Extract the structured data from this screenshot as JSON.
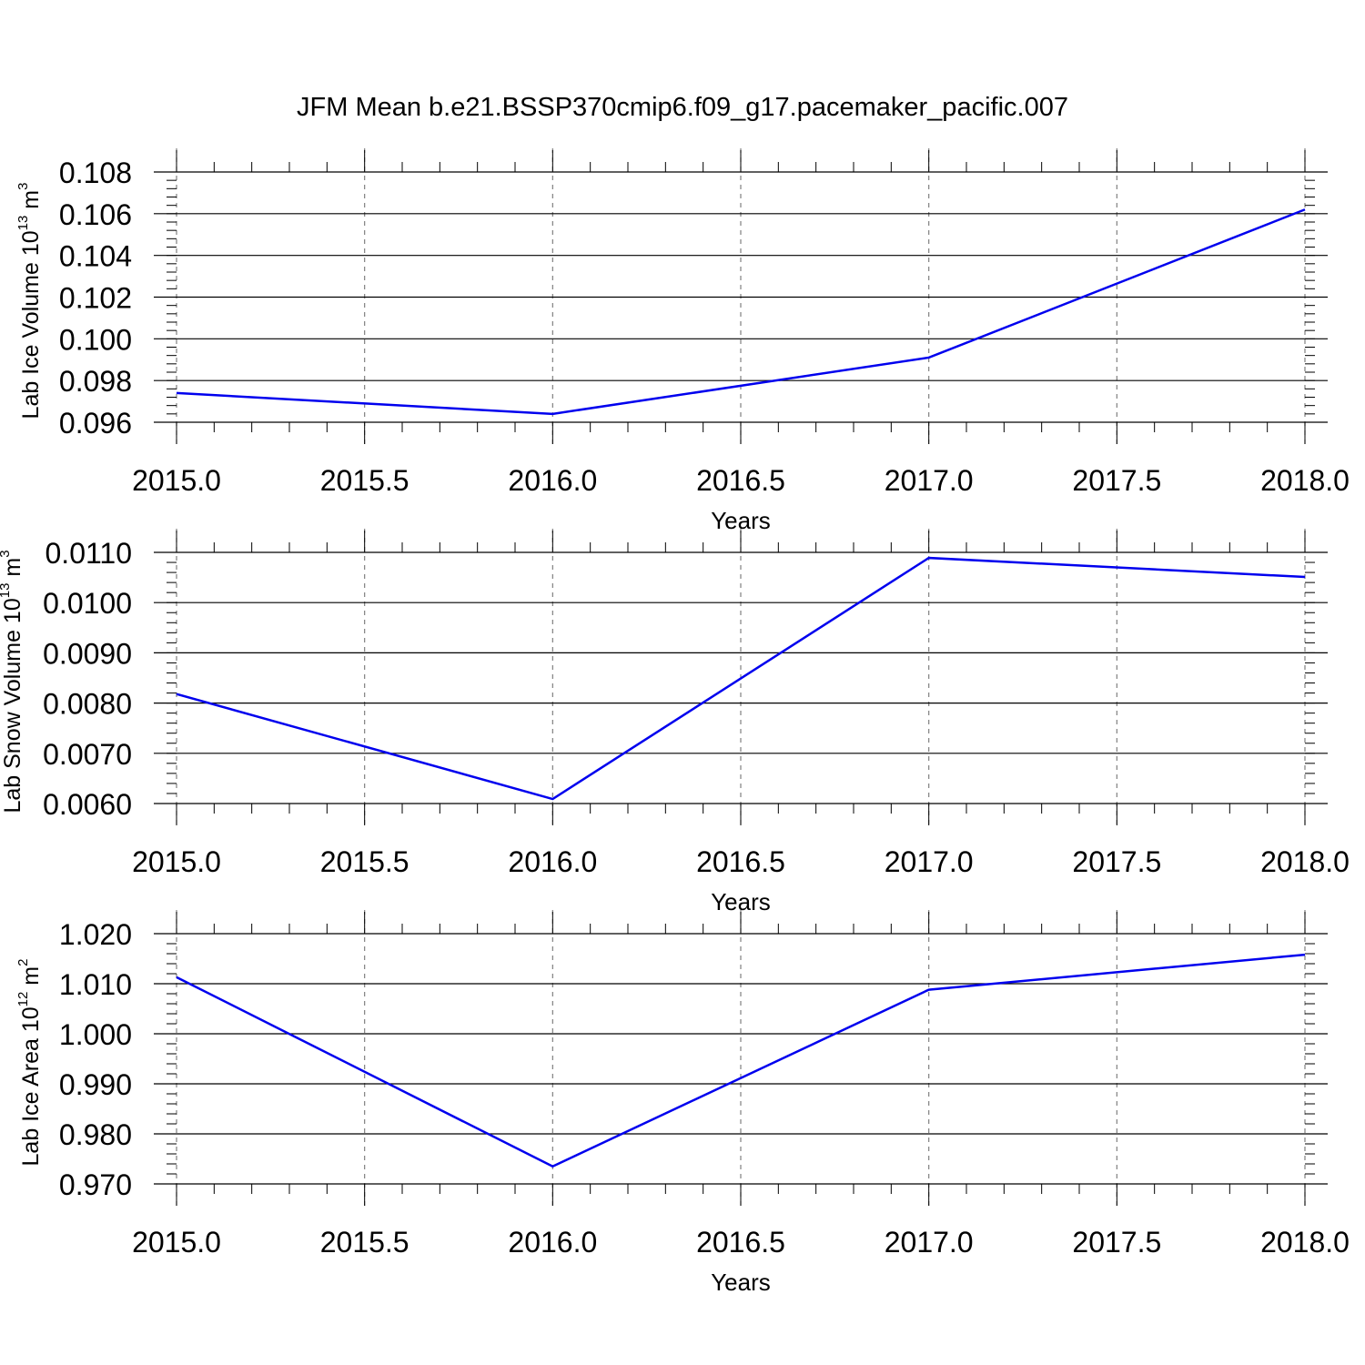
{
  "title": "JFM Mean b.e21.BSSP370cmip6.f09_g17.pacemaker_pacific.007",
  "chart_data": [
    {
      "type": "line",
      "ylabel": {
        "base": "Lab Ice Volume 10",
        "exponent": "13",
        "unit": " m",
        "unit_exponent": "3"
      },
      "xlabel": "Years",
      "xlim": [
        2015.0,
        2018.0
      ],
      "ylim": [
        0.096,
        0.108
      ],
      "x_ticks": [
        "2015.0",
        "2015.5",
        "2016.0",
        "2016.5",
        "2017.0",
        "2017.5",
        "2018.0"
      ],
      "y_ticks": [
        "0.096",
        "0.098",
        "0.100",
        "0.102",
        "0.104",
        "0.106",
        "0.108"
      ],
      "x": [
        2015,
        2016,
        2017,
        2018
      ],
      "series": [
        {
          "values": [
            0.0974,
            0.0964,
            0.0991,
            0.1062
          ]
        }
      ]
    },
    {
      "type": "line",
      "ylabel": {
        "base": "Lab Snow Volume 10",
        "exponent": "13",
        "unit": " m",
        "unit_exponent": "3"
      },
      "xlabel": "Years",
      "xlim": [
        2015.0,
        2018.0
      ],
      "ylim": [
        0.006,
        0.011
      ],
      "x_ticks": [
        "2015.0",
        "2015.5",
        "2016.0",
        "2016.5",
        "2017.0",
        "2017.5",
        "2018.0"
      ],
      "y_ticks": [
        "0.0060",
        "0.0070",
        "0.0080",
        "0.0090",
        "0.0100",
        "0.0110"
      ],
      "x": [
        2015,
        2016,
        2017,
        2018
      ],
      "series": [
        {
          "values": [
            0.00818,
            0.00609,
            0.01089,
            0.01051
          ]
        }
      ]
    },
    {
      "type": "line",
      "ylabel": {
        "base": "Lab Ice Area 10",
        "exponent": "12",
        "unit": " m",
        "unit_exponent": "2"
      },
      "xlabel": "Years",
      "xlim": [
        2015.0,
        2018.0
      ],
      "ylim": [
        0.97,
        1.02
      ],
      "x_ticks": [
        "2015.0",
        "2015.5",
        "2016.0",
        "2016.5",
        "2017.0",
        "2017.5",
        "2018.0"
      ],
      "y_ticks": [
        "0.970",
        "0.980",
        "0.990",
        "1.000",
        "1.010",
        "1.020"
      ],
      "x": [
        2015,
        2016,
        2017,
        2018
      ],
      "series": [
        {
          "values": [
            1.0113,
            0.9735,
            1.0088,
            1.0158
          ]
        }
      ]
    }
  ],
  "colors": {
    "line": "#0000ee",
    "axis": "#000000",
    "grid": "#808080"
  }
}
